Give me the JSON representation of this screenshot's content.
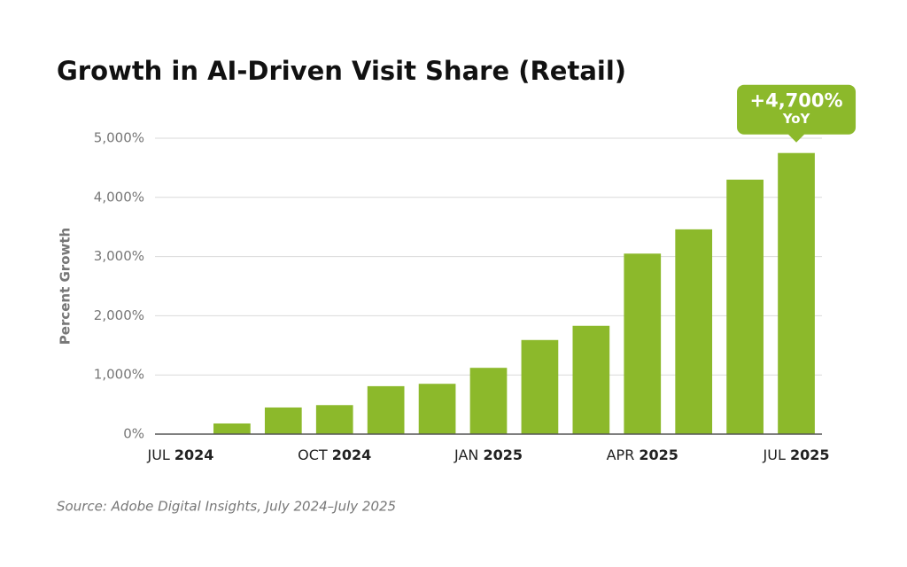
{
  "chart_data": {
    "type": "bar",
    "title": "Growth in AI-Driven Visit Share (Retail)",
    "y_label": "Percent Growth",
    "source": "Source: Adobe Digital Insights, July 2024–July 2025",
    "categories": [
      "JUL 2024",
      null,
      null,
      "OCT 2024",
      null,
      null,
      "JAN 2025",
      null,
      null,
      "APR 2025",
      null,
      null,
      "JUL 2025"
    ],
    "values": [
      0,
      180,
      450,
      490,
      810,
      850,
      1120,
      1590,
      1830,
      3050,
      3460,
      4300,
      4750
    ],
    "color": "#8cb92b",
    "ylim": [
      0,
      5000
    ],
    "yticks": [
      {
        "value": 0,
        "label": "0%"
      },
      {
        "value": 1000,
        "label": "1,000%"
      },
      {
        "value": 2000,
        "label": "2,000%"
      },
      {
        "value": 3000,
        "label": "3,000%"
      },
      {
        "value": 4000,
        "label": "4,000%"
      },
      {
        "value": 5000,
        "label": "5,000%"
      }
    ],
    "grid": true,
    "annotation": {
      "text": "+4,700%",
      "subtext": "YoY"
    }
  }
}
